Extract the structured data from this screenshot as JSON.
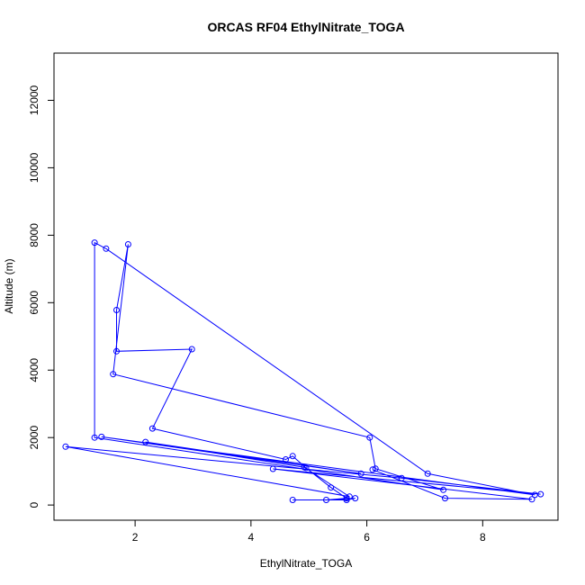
{
  "chart_data": {
    "type": "scatter",
    "title": "ORCAS RF04 EthylNitrate_TOGA",
    "xlabel": "EthylNitrate_TOGA",
    "ylabel": "Altitude (m)",
    "xlim": [
      0.6,
      9.3
    ],
    "ylim": [
      -450,
      13400
    ],
    "x_ticks": [
      2,
      4,
      6,
      8
    ],
    "y_ticks": [
      0,
      2000,
      4000,
      6000,
      8000,
      10000,
      12000
    ],
    "x_tick_labels": [
      "2",
      "4",
      "6",
      "8"
    ],
    "y_tick_labels": [
      "0",
      "2000",
      "4000",
      "6000",
      "8000",
      "10000",
      "12000"
    ],
    "grid": false,
    "legend": "none",
    "series": [
      {
        "color": "#0000ff",
        "marker": "open-circle",
        "connected": true,
        "points": [
          {
            "x": 4.72,
            "y": 150
          },
          {
            "x": 5.65,
            "y": 150
          },
          {
            "x": 5.8,
            "y": 200
          },
          {
            "x": 5.3,
            "y": 150
          },
          {
            "x": 5.65,
            "y": 200
          },
          {
            "x": 5.38,
            "y": 520
          },
          {
            "x": 4.95,
            "y": 1100
          },
          {
            "x": 4.72,
            "y": 1450
          },
          {
            "x": 4.6,
            "y": 1350
          },
          {
            "x": 2.3,
            "y": 2270
          },
          {
            "x": 2.98,
            "y": 4620
          },
          {
            "x": 1.68,
            "y": 4560
          },
          {
            "x": 1.68,
            "y": 5780
          },
          {
            "x": 1.88,
            "y": 7730
          },
          {
            "x": 1.62,
            "y": 3880
          },
          {
            "x": 6.05,
            "y": 2000
          },
          {
            "x": 6.15,
            "y": 1080
          },
          {
            "x": 7.32,
            "y": 450
          },
          {
            "x": 1.3,
            "y": 2000
          },
          {
            "x": 1.3,
            "y": 7780
          },
          {
            "x": 1.5,
            "y": 7600
          },
          {
            "x": 7.05,
            "y": 930
          },
          {
            "x": 8.9,
            "y": 300
          },
          {
            "x": 1.42,
            "y": 2020
          },
          {
            "x": 5.9,
            "y": 930
          },
          {
            "x": 2.18,
            "y": 1870
          },
          {
            "x": 4.92,
            "y": 1120
          },
          {
            "x": 5.7,
            "y": 250
          },
          {
            "x": 0.8,
            "y": 1730
          },
          {
            "x": 6.6,
            "y": 800
          },
          {
            "x": 9.0,
            "y": 320
          },
          {
            "x": 4.38,
            "y": 1070
          },
          {
            "x": 8.85,
            "y": 170
          },
          {
            "x": 7.35,
            "y": 200
          },
          {
            "x": 6.1,
            "y": 1050
          }
        ]
      }
    ]
  }
}
